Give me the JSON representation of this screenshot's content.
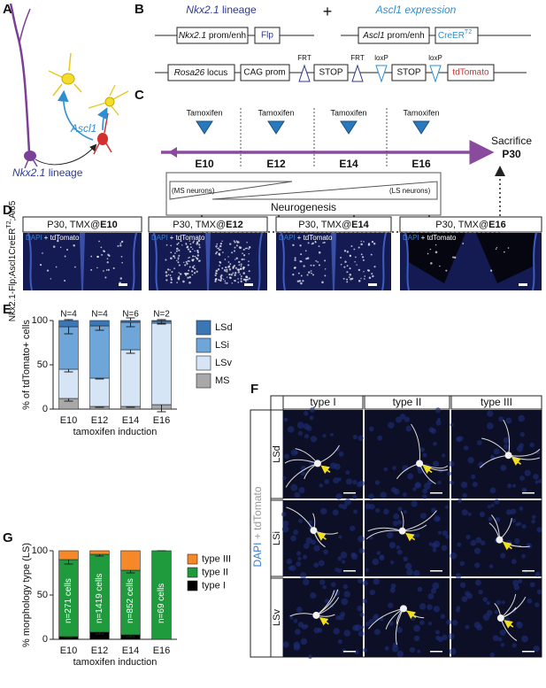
{
  "panel_labels": [
    "A",
    "B",
    "C",
    "D",
    "E",
    "F",
    "G"
  ],
  "panel_a": {
    "gene": "Ascl1",
    "lineage": [
      "Nkx2.1",
      "lineage"
    ]
  },
  "panel_b": {
    "lineage": [
      "Nkx2.1",
      "lineage"
    ],
    "plus": "+",
    "expression": [
      "Ascl1",
      "expression"
    ],
    "flp_construct": [
      "Nkx2.1",
      "prom/enh",
      "Flp"
    ],
    "cre_construct": [
      "Ascl1",
      "prom/enh",
      "CreER",
      "T2"
    ],
    "reporter": [
      "Rosa26",
      "locus",
      "CAG prom",
      "FRT",
      "STOP",
      "FRT",
      "loxP",
      "STOP",
      "loxP",
      "tdTomato"
    ]
  },
  "panel_c": {
    "injections": [
      "Tamoxifen",
      "Tamoxifen",
      "Tamoxifen",
      "Tamoxifen"
    ],
    "stages": [
      "E10",
      "E12",
      "E14",
      "E16"
    ],
    "sacrifice": "Sacrifice",
    "endpoint": "P30",
    "ms": "(MS neurons)",
    "ls": "(LS neurons)",
    "process": "Neurogenesis"
  },
  "panel_d": {
    "genotype": [
      "Nkx2.1-Flp;Ascl1CreER",
      "T2",
      ";Ai65"
    ],
    "stain": [
      "DAPI",
      "+ tdTomato"
    ],
    "panels": [
      {
        "prefix": "P30, TMX@",
        "stage": "E10"
      },
      {
        "prefix": "P30, TMX@",
        "stage": "E12"
      },
      {
        "prefix": "P30, TMX@",
        "stage": "E14"
      },
      {
        "prefix": "P30, TMX@",
        "stage": "E16"
      }
    ]
  },
  "panel_f": {
    "columns": [
      "type I",
      "type II",
      "type III"
    ],
    "rows": [
      "LSd",
      "LSi",
      "LSv"
    ],
    "stain": [
      "DAPI",
      "+ tdTomato"
    ]
  },
  "chart_data": [
    {
      "type": "stacked_bar",
      "ylabel": "% of tdTomato+ cells",
      "xlabel": "tamoxifen induction",
      "categories": [
        "E10",
        "E12",
        "E14",
        "E16"
      ],
      "annotations": [
        "N=4",
        "N=4",
        "N=6",
        "N=2"
      ],
      "ylim": [
        0,
        100
      ],
      "yticks": [
        0,
        50,
        100
      ],
      "grid": false,
      "legend": "right",
      "series": [
        {
          "name": "MS",
          "color": "#a8a8a8",
          "values": [
            12,
            3,
            3,
            5
          ],
          "errors": [
            3,
            1,
            1,
            8
          ]
        },
        {
          "name": "LSv",
          "color": "#d5e5f5",
          "values": [
            33,
            32,
            64,
            92
          ],
          "errors": [
            3,
            1,
            4,
            1
          ]
        },
        {
          "name": "LSi",
          "color": "#6ea6da",
          "values": [
            48,
            59,
            31,
            2
          ],
          "errors": [
            8,
            5,
            5,
            2
          ]
        },
        {
          "name": "LSd",
          "color": "#3b76b6",
          "values": [
            7,
            6,
            2,
            1
          ]
        }
      ]
    },
    {
      "type": "stacked_bar",
      "ylabel": "% morphology type (LS)",
      "xlabel": "tamoxifen induction",
      "categories": [
        "E10",
        "E12",
        "E14",
        "E16"
      ],
      "bar_labels": [
        "n=271 cells",
        "n=1419 cells",
        "n=852 cells",
        "n=69 cells"
      ],
      "ylim": [
        0,
        100
      ],
      "yticks": [
        0,
        50,
        100
      ],
      "grid": false,
      "legend": "right",
      "series": [
        {
          "name": "type I",
          "color": "#000000",
          "values": [
            3,
            8,
            5,
            0
          ],
          "errors": [
            1,
            2,
            2,
            0
          ]
        },
        {
          "name": "type II",
          "color": "#1f9a3c",
          "values": [
            87,
            88,
            73,
            100
          ],
          "errors": [
            5,
            2,
            3,
            0
          ]
        },
        {
          "name": "type III",
          "color": "#f5892a",
          "values": [
            10,
            4,
            22,
            0
          ]
        }
      ]
    }
  ]
}
